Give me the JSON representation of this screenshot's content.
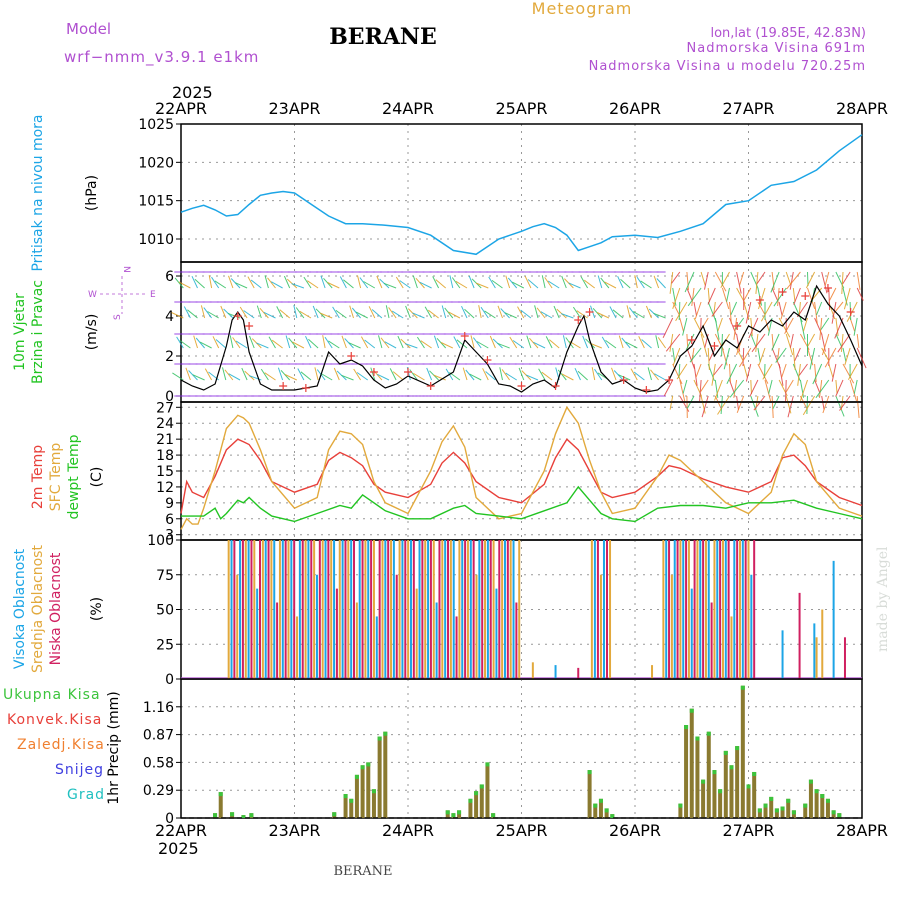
{
  "header": {
    "model_label": "Model",
    "model_name": "wrf−nmm_v3.9.1  e1km",
    "station": "BERANE",
    "product": "Meteogram",
    "lonlat": "lon,lat (19.85E, 42.83N)",
    "elevation": "Nadmorska Visina 691m",
    "model_elevation": "Nadmorska Visina u modelu 720.25m",
    "footer_station": "BERANE",
    "watermark": "made by Angel",
    "year": "2025"
  },
  "colors": {
    "pressure": "#1ca5e6",
    "temp2m": "#e8403a",
    "sfc_temp": "#e2a93c",
    "dewpt": "#22c422",
    "high_cloud": "#1ca5e6",
    "mid_cloud": "#e2a93c",
    "low_cloud": "#d02060",
    "total_precip": "#3cc43c",
    "conv_precip": "#e8403a",
    "frz_precip": "#f08030",
    "snow": "#4040e0",
    "hail": "#20c0c0",
    "model_text": "#b050d0",
    "wind_speed": "#000000",
    "gust": "#e8403a"
  },
  "chart_data": [
    {
      "type": "line",
      "panel": "pressure",
      "ylabel_colored": "Pritisak na nivou mora",
      "ylabel_unit": "(hPa)",
      "x_ticks": [
        "22APR",
        "23APR",
        "24APR",
        "25APR",
        "26APR",
        "27APR",
        "28APR"
      ],
      "ylim": [
        1007,
        1025
      ],
      "yticks": [
        1010,
        1015,
        1020,
        1025
      ],
      "grid": true,
      "series": [
        {
          "x": [
            0,
            0.1,
            0.2,
            0.3,
            0.4,
            0.5,
            0.6,
            0.7,
            0.8,
            0.9,
            1.0,
            1.15,
            1.3,
            1.45,
            1.6,
            1.8,
            2.0,
            2.2,
            2.4,
            2.6,
            2.8,
            3.0,
            3.1,
            3.2,
            3.3,
            3.4,
            3.5,
            3.6,
            3.7,
            3.8,
            4.0,
            4.2,
            4.4,
            4.6,
            4.8,
            5.0,
            5.2,
            5.4,
            5.6,
            5.8,
            6.0
          ],
          "y": [
            1013.5,
            1014,
            1014.4,
            1013.8,
            1013,
            1013.2,
            1014.5,
            1015.7,
            1016,
            1016.2,
            1016,
            1014.5,
            1013,
            1012,
            1012,
            1011.8,
            1011.5,
            1010.5,
            1008.5,
            1008,
            1010,
            1011,
            1011.6,
            1012,
            1011.5,
            1010.5,
            1008.5,
            1009,
            1009.5,
            1010.3,
            1010.5,
            1010.2,
            1011,
            1012,
            1014.5,
            1015,
            1017,
            1017.5,
            1019,
            1021.5,
            1023.6
          ]
        }
      ]
    },
    {
      "type": "line",
      "panel": "wind",
      "ylabel_colored": "10m Vjetar Brzina i Pravac",
      "ylabel_unit": "(m/s)",
      "legend_compass": {
        "n": "N",
        "s": "S",
        "w": "W",
        "e": "E"
      },
      "ylim": [
        -0.3,
        6.7
      ],
      "yticks": [
        0,
        2,
        4,
        6
      ],
      "grid": true,
      "series": [
        {
          "name": "speed",
          "x": [
            0,
            0.1,
            0.2,
            0.3,
            0.4,
            0.45,
            0.5,
            0.55,
            0.6,
            0.7,
            0.8,
            1.0,
            1.2,
            1.3,
            1.4,
            1.5,
            1.6,
            1.7,
            1.8,
            1.9,
            2.0,
            2.2,
            2.4,
            2.5,
            2.6,
            2.7,
            2.8,
            2.9,
            3.0,
            3.1,
            3.2,
            3.3,
            3.4,
            3.5,
            3.55,
            3.6,
            3.7,
            3.8,
            3.9,
            4.0,
            4.1,
            4.2,
            4.3,
            4.4,
            4.5,
            4.6,
            4.7,
            4.8,
            4.9,
            5.0,
            5.1,
            5.2,
            5.3,
            5.4,
            5.5,
            5.6,
            5.7,
            5.8,
            5.9,
            6.0
          ],
          "y": [
            0.8,
            0.5,
            0.3,
            0.6,
            2.5,
            3.8,
            4.2,
            3.8,
            2.2,
            0.6,
            0.3,
            0.3,
            0.5,
            2.2,
            1.6,
            1.8,
            1.5,
            0.8,
            0.4,
            0.6,
            1.0,
            0.5,
            1.2,
            2.8,
            2.2,
            1.6,
            0.6,
            0.5,
            0.2,
            0.6,
            0.8,
            0.4,
            2.2,
            3.5,
            4.0,
            2.8,
            1.2,
            0.6,
            0.8,
            0.4,
            0.2,
            0.3,
            0.8,
            2.0,
            2.5,
            3.5,
            2.0,
            2.8,
            2.4,
            3.5,
            3.2,
            3.8,
            3.5,
            4.2,
            3.8,
            5.5,
            4.6,
            4.0,
            2.8,
            1.5
          ]
        },
        {
          "name": "gust",
          "x": [
            0.5,
            0.6,
            0.9,
            1.1,
            1.5,
            1.7,
            2.0,
            2.2,
            2.5,
            2.7,
            3.0,
            3.3,
            3.5,
            3.6,
            3.9,
            4.1,
            4.3,
            4.5,
            4.7,
            4.9,
            5.1,
            5.3,
            5.5,
            5.7,
            5.9
          ],
          "y": [
            4.0,
            3.5,
            0.5,
            0.4,
            2.0,
            1.2,
            1.2,
            0.5,
            3.0,
            1.8,
            0.5,
            0.5,
            3.8,
            4.2,
            0.8,
            0.3,
            0.8,
            2.8,
            2.5,
            3.5,
            4.8,
            5.2,
            5.0,
            5.4,
            4.2
          ]
        }
      ]
    },
    {
      "type": "line",
      "panel": "temperature",
      "ylabel_colored": [
        "2m Temp",
        "SFC Temp",
        "dewpt Temp"
      ],
      "ylabel_unit": "(C)",
      "ylim": [
        2,
        28
      ],
      "yticks": [
        3,
        6,
        9,
        12,
        15,
        18,
        21,
        24,
        27
      ],
      "grid": true,
      "series": [
        {
          "name": "2m Temp",
          "x": [
            0,
            0.05,
            0.1,
            0.2,
            0.3,
            0.4,
            0.5,
            0.55,
            0.6,
            0.7,
            0.8,
            1.0,
            1.2,
            1.3,
            1.4,
            1.5,
            1.6,
            1.7,
            1.8,
            2.0,
            2.2,
            2.3,
            2.4,
            2.5,
            2.6,
            2.8,
            3.0,
            3.2,
            3.3,
            3.4,
            3.5,
            3.6,
            3.7,
            3.8,
            4.0,
            4.2,
            4.3,
            4.4,
            4.6,
            4.8,
            5.0,
            5.2,
            5.3,
            5.4,
            5.5,
            5.6,
            5.8,
            6.0
          ],
          "y": [
            7,
            13,
            11,
            10,
            14,
            19,
            21,
            20.5,
            20,
            17,
            13,
            11,
            12.5,
            17,
            18.5,
            17.5,
            16,
            12.5,
            11,
            10,
            12.5,
            16.5,
            18.5,
            16.5,
            13,
            10,
            9,
            12.5,
            17.5,
            21,
            19,
            15,
            11,
            10,
            11,
            14,
            16,
            15.5,
            13.5,
            12,
            11,
            13,
            17.5,
            18,
            16,
            13,
            10,
            8.5
          ]
        },
        {
          "name": "SFC Temp",
          "x": [
            0,
            0.05,
            0.1,
            0.15,
            0.2,
            0.3,
            0.4,
            0.5,
            0.55,
            0.6,
            0.7,
            0.8,
            1.0,
            1.2,
            1.3,
            1.4,
            1.5,
            1.6,
            1.7,
            1.8,
            2.0,
            2.2,
            2.3,
            2.4,
            2.5,
            2.6,
            2.8,
            3.0,
            3.2,
            3.3,
            3.4,
            3.5,
            3.6,
            3.7,
            3.8,
            4.0,
            4.2,
            4.3,
            4.4,
            4.6,
            4.8,
            5.0,
            5.2,
            5.3,
            5.4,
            5.5,
            5.6,
            5.8,
            6.0
          ],
          "y": [
            4,
            6,
            5,
            5,
            8,
            15,
            23,
            25.5,
            25,
            24,
            19,
            13,
            8,
            10,
            19,
            22.5,
            22,
            20,
            13,
            9,
            7,
            15,
            20.5,
            23.5,
            19.5,
            10,
            6,
            7,
            15,
            22,
            27,
            24,
            17,
            11,
            7,
            8,
            14,
            18,
            17,
            13,
            9,
            7,
            11,
            18,
            22,
            20,
            13,
            8,
            6.5
          ]
        },
        {
          "name": "dewpt Temp",
          "x": [
            0,
            0.1,
            0.2,
            0.3,
            0.35,
            0.4,
            0.5,
            0.55,
            0.6,
            0.7,
            0.8,
            1.0,
            1.2,
            1.4,
            1.5,
            1.6,
            1.7,
            1.8,
            2.0,
            2.2,
            2.4,
            2.5,
            2.6,
            2.8,
            3.0,
            3.2,
            3.4,
            3.5,
            3.6,
            3.7,
            3.8,
            4.0,
            4.2,
            4.4,
            4.6,
            4.8,
            5.0,
            5.2,
            5.4,
            5.6,
            5.8,
            6.0
          ],
          "y": [
            6.5,
            6.5,
            6.5,
            8,
            6,
            7,
            9.5,
            9,
            10,
            8,
            6.5,
            5.5,
            7,
            8.5,
            8,
            10.5,
            9,
            7.5,
            6,
            6,
            8,
            8.5,
            7,
            6.5,
            6,
            7.5,
            9,
            12,
            9.5,
            7,
            6,
            5.5,
            8,
            8.5,
            8.5,
            8,
            9,
            9,
            9.5,
            8,
            7,
            6
          ]
        }
      ]
    },
    {
      "type": "bar",
      "panel": "clouds",
      "ylabel_colored": [
        "Visoka Oblacnost",
        "Srednja Oblacnost",
        "Niska Oblacnost"
      ],
      "ylabel_unit": "(%)",
      "ylim": [
        0,
        100
      ],
      "yticks": [
        0,
        25,
        50,
        75,
        100
      ],
      "grid": true,
      "segments": [
        {
          "from": 0.42,
          "to": 2.98,
          "value": 100
        },
        {
          "from": 3.62,
          "to": 3.78,
          "value": 100
        },
        {
          "from": 4.25,
          "to": 5.05,
          "value": 100
        }
      ]
    },
    {
      "type": "bar",
      "panel": "precipitation",
      "ylabel_colored": [
        "Ukupna Kisa",
        "Konvek.Kisa",
        "Zaledj.Kisa",
        "Snijeg",
        "Grad"
      ],
      "ylabel_unit": "1hr Precip (mm)",
      "ylim": [
        0,
        1.45
      ],
      "yticks": [
        0,
        0.29,
        0.58,
        0.87,
        1.16
      ],
      "grid": true,
      "bars": {
        "x": [
          0.3,
          0.35,
          0.45,
          0.55,
          0.62,
          1.35,
          1.45,
          1.5,
          1.55,
          1.6,
          1.65,
          1.7,
          1.75,
          1.8,
          2.35,
          2.4,
          2.45,
          2.55,
          2.6,
          2.65,
          2.7,
          2.75,
          3.6,
          3.65,
          3.7,
          3.75,
          3.8,
          4.4,
          4.45,
          4.5,
          4.55,
          4.6,
          4.65,
          4.7,
          4.75,
          4.8,
          4.85,
          4.9,
          4.95,
          5.0,
          5.05,
          5.1,
          5.15,
          5.2,
          5.25,
          5.3,
          5.35,
          5.4,
          5.5,
          5.55,
          5.6,
          5.65,
          5.7,
          5.75,
          5.8
        ],
        "values": [
          0.05,
          0.27,
          0.06,
          0.03,
          0.05,
          0.06,
          0.25,
          0.2,
          0.45,
          0.55,
          0.58,
          0.3,
          0.85,
          0.9,
          0.08,
          0.05,
          0.08,
          0.2,
          0.28,
          0.35,
          0.58,
          0.05,
          0.5,
          0.15,
          0.2,
          0.1,
          0.04,
          0.15,
          0.97,
          1.14,
          0.85,
          0.4,
          0.9,
          0.5,
          0.3,
          0.7,
          0.55,
          0.75,
          1.38,
          0.35,
          0.48,
          0.1,
          0.15,
          0.22,
          0.1,
          0.12,
          0.2,
          0.08,
          0.15,
          0.4,
          0.3,
          0.25,
          0.2,
          0.08,
          0.05
        ]
      }
    }
  ]
}
